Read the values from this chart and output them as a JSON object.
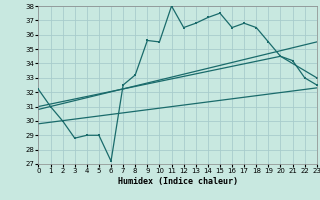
{
  "xlabel": "Humidex (Indice chaleur)",
  "bg_color": "#c8e8e0",
  "grid_color": "#a8cccc",
  "line_color": "#1a6b6b",
  "xmin": 0,
  "xmax": 23,
  "ymin": 27,
  "ymax": 38,
  "jagged_x": [
    0,
    1,
    2,
    3,
    4,
    5,
    6,
    7,
    8,
    9,
    10,
    11,
    12,
    13,
    14,
    15,
    16,
    17,
    18,
    19,
    20,
    21,
    22,
    23
  ],
  "jagged_y": [
    32.2,
    31.0,
    30.0,
    28.8,
    29.0,
    29.0,
    27.2,
    32.5,
    33.2,
    35.6,
    35.5,
    38.0,
    36.5,
    36.8,
    37.2,
    37.5,
    36.5,
    36.8,
    36.5,
    35.5,
    34.5,
    34.2,
    33.0,
    32.5
  ],
  "line1_x": [
    0,
    23
  ],
  "line1_y": [
    30.8,
    35.5
  ],
  "line2_x": [
    0,
    23
  ],
  "line2_y": [
    29.8,
    32.3
  ],
  "line3_x": [
    0,
    20,
    23
  ],
  "line3_y": [
    31.0,
    34.5,
    33.0
  ]
}
